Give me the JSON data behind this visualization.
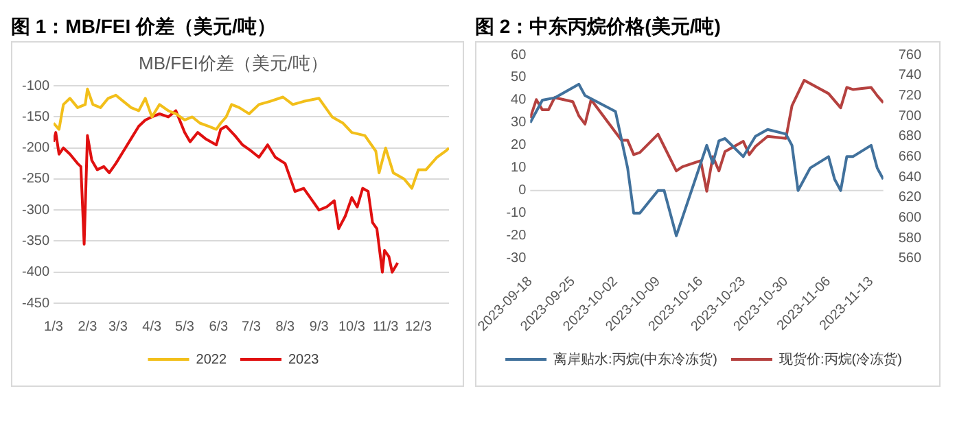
{
  "chart_data": [
    {
      "type": "line",
      "title": "图 1：MB/FEI 价差（美元/吨）",
      "subtitle": "MB/FEI价差（美元/吨）",
      "xlim": [
        "--01-03",
        "--12-31"
      ],
      "xticks": [
        {
          "value": "--01-03",
          "label": "1/3"
        },
        {
          "value": "--02-03",
          "label": "2/3"
        },
        {
          "value": "--03-03",
          "label": "3/3"
        },
        {
          "value": "--04-03",
          "label": "4/3"
        },
        {
          "value": "--05-03",
          "label": "5/3"
        },
        {
          "value": "--06-03",
          "label": "6/3"
        },
        {
          "value": "--07-03",
          "label": "7/3"
        },
        {
          "value": "--08-03",
          "label": "8/3"
        },
        {
          "value": "--09-03",
          "label": "9/3"
        },
        {
          "value": "--10-03",
          "label": "10/3"
        },
        {
          "value": "--11-03",
          "label": "11/3"
        },
        {
          "value": "--12-03",
          "label": "12/3"
        }
      ],
      "ylim": [
        -450,
        -100
      ],
      "yticks": [
        -450,
        -400,
        -350,
        -300,
        -250,
        -200,
        -150,
        -100
      ],
      "grid": "y",
      "legend": "bottom",
      "marker": "none",
      "line_style": "solid",
      "series": [
        {
          "name": "2022",
          "color": "#f2bf1a",
          "x": [
            "--01-03",
            "--01-08",
            "--01-12",
            "--01-18",
            "--01-25",
            "--02-01",
            "--02-03",
            "--02-08",
            "--02-15",
            "--02-22",
            "--03-01",
            "--03-08",
            "--03-15",
            "--03-22",
            "--03-28",
            "--04-03",
            "--04-10",
            "--04-18",
            "--04-25",
            "--05-03",
            "--05-10",
            "--05-17",
            "--05-25",
            "--06-01",
            "--06-05",
            "--06-10",
            "--06-15",
            "--06-22",
            "--07-01",
            "--07-10",
            "--07-20",
            "--08-01",
            "--08-10",
            "--08-20",
            "--09-03",
            "--09-15",
            "--09-25",
            "--10-03",
            "--10-15",
            "--10-25",
            "--10-28",
            "--11-03",
            "--11-10",
            "--11-20",
            "--11-27",
            "--12-03",
            "--12-10",
            "--12-20",
            "--12-28",
            "--12-31"
          ],
          "values": [
            -160,
            -170,
            -130,
            -120,
            -135,
            -130,
            -105,
            -130,
            -135,
            -120,
            -115,
            -125,
            -135,
            -140,
            -120,
            -150,
            -130,
            -140,
            -145,
            -155,
            -150,
            -160,
            -165,
            -170,
            -160,
            -150,
            -130,
            -135,
            -145,
            -130,
            -125,
            -118,
            -130,
            -125,
            -120,
            -150,
            -160,
            -175,
            -180,
            -205,
            -240,
            -200,
            -240,
            -250,
            -265,
            -235,
            -235,
            -215,
            -205,
            -200
          ]
        },
        {
          "name": "2023",
          "color": "#e01010",
          "x": [
            "--01-03",
            "--01-05",
            "--01-08",
            "--01-12",
            "--01-18",
            "--01-25",
            "--01-28",
            "--01-31",
            "--02-03",
            "--02-07",
            "--02-12",
            "--02-18",
            "--02-23",
            "--03-01",
            "--03-08",
            "--03-15",
            "--03-22",
            "--03-28",
            "--04-03",
            "--04-10",
            "--04-18",
            "--04-25",
            "--05-03",
            "--05-08",
            "--05-15",
            "--05-22",
            "--06-01",
            "--06-05",
            "--06-10",
            "--06-18",
            "--06-25",
            "--07-03",
            "--07-10",
            "--07-18",
            "--07-25",
            "--08-03",
            "--08-12",
            "--08-20",
            "--08-28",
            "--09-03",
            "--09-10",
            "--09-17",
            "--09-21",
            "--09-27",
            "--10-03",
            "--10-08",
            "--10-13",
            "--10-18",
            "--10-22",
            "--10-26",
            "--10-31",
            "--11-02",
            "--11-06",
            "--11-09",
            "--11-14"
          ],
          "values": [
            -190,
            -175,
            -210,
            -200,
            -210,
            -225,
            -230,
            -355,
            -180,
            -220,
            -235,
            -230,
            -240,
            -225,
            -205,
            -185,
            -165,
            -155,
            -150,
            -145,
            -150,
            -140,
            -175,
            -190,
            -175,
            -185,
            -195,
            -170,
            -165,
            -180,
            -195,
            -205,
            -215,
            -195,
            -215,
            -225,
            -270,
            -265,
            -285,
            -300,
            -295,
            -285,
            -330,
            -310,
            -280,
            -295,
            -265,
            -270,
            -320,
            -330,
            -400,
            -365,
            -375,
            -400,
            -385
          ]
        }
      ]
    },
    {
      "type": "line",
      "title": "图 2：中东丙烷价格(美元/吨)",
      "xlim": [
        "2023-09-18",
        "2023-11-15"
      ],
      "xticks": [
        "2023-09-18",
        "2023-09-25",
        "2023-10-02",
        "2023-10-09",
        "2023-10-16",
        "2023-10-23",
        "2023-10-30",
        "2023-11-06",
        "2023-11-13"
      ],
      "ylim": [
        -30,
        60
      ],
      "yticks": [
        -30,
        -20,
        -10,
        0,
        10,
        20,
        30,
        40,
        50,
        60
      ],
      "y2lim": [
        560,
        760
      ],
      "y2ticks": [
        560,
        580,
        600,
        620,
        640,
        660,
        680,
        700,
        720,
        740,
        760
      ],
      "ref_lines": [
        {
          "axis": "y",
          "value": 0,
          "color": "#d9d9d9"
        }
      ],
      "grid": false,
      "legend": "bottom",
      "marker": "none",
      "line_style": "solid",
      "series": [
        {
          "name": "离岸贴水:丙烷(中东冷冻货)",
          "color": "#41719c",
          "x": [
            "2023-09-18",
            "2023-09-20",
            "2023-09-22",
            "2023-09-26",
            "2023-09-27",
            "2023-10-02",
            "2023-10-04",
            "2023-10-05",
            "2023-10-06",
            "2023-10-09",
            "2023-10-10",
            "2023-10-12",
            "2023-10-17",
            "2023-10-18",
            "2023-10-19",
            "2023-10-20",
            "2023-10-23",
            "2023-10-25",
            "2023-10-27",
            "2023-10-30",
            "2023-10-31",
            "2023-11-01",
            "2023-11-03",
            "2023-11-06",
            "2023-11-07",
            "2023-11-08",
            "2023-11-09",
            "2023-11-10",
            "2023-11-13",
            "2023-11-14",
            "2023-11-15"
          ],
          "values": [
            30,
            40,
            41,
            47,
            42,
            35,
            10,
            -10,
            -10,
            0,
            0,
            -20,
            20,
            12,
            22,
            23,
            15,
            24,
            27,
            25,
            20,
            0,
            10,
            15,
            5,
            0,
            15,
            15,
            20,
            10,
            5
          ]
        },
        {
          "name": "现货价:丙烷(冷冻货)",
          "color": "#b5413f",
          "axis": "y2",
          "x": [
            "2023-09-18",
            "2023-09-19",
            "2023-09-20",
            "2023-09-21",
            "2023-09-22",
            "2023-09-25",
            "2023-09-26",
            "2023-09-27",
            "2023-09-28",
            "2023-10-02",
            "2023-10-03",
            "2023-10-04",
            "2023-10-05",
            "2023-10-06",
            "2023-10-09",
            "2023-10-10",
            "2023-10-12",
            "2023-10-13",
            "2023-10-16",
            "2023-10-17",
            "2023-10-18",
            "2023-10-19",
            "2023-10-20",
            "2023-10-23",
            "2023-10-24",
            "2023-10-25",
            "2023-10-27",
            "2023-10-30",
            "2023-10-31",
            "2023-11-02",
            "2023-11-06",
            "2023-11-08",
            "2023-11-09",
            "2023-11-10",
            "2023-11-13",
            "2023-11-14",
            "2023-11-15"
          ],
          "values": [
            698,
            716,
            706,
            706,
            718,
            714,
            700,
            692,
            716,
            684,
            676,
            676,
            662,
            664,
            682,
            670,
            646,
            650,
            656,
            626,
            660,
            646,
            665,
            675,
            662,
            670,
            680,
            678,
            710,
            735,
            722,
            708,
            728,
            726,
            728,
            720,
            713
          ]
        }
      ]
    }
  ]
}
